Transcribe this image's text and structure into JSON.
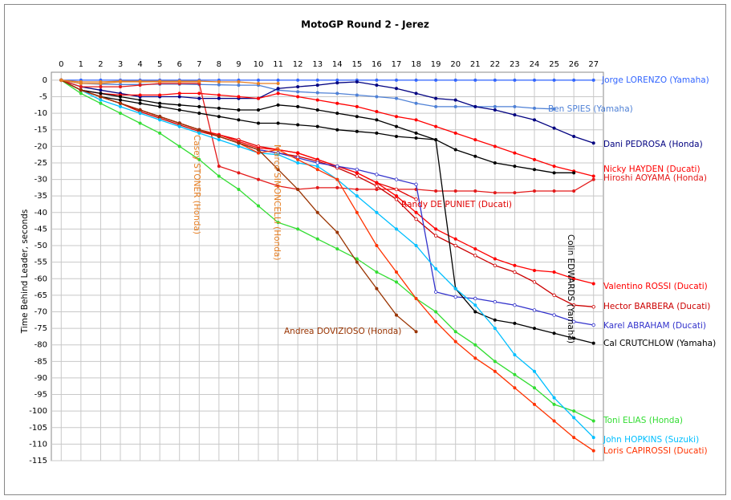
{
  "chart_data": {
    "type": "line",
    "title": "MotoGP Round 2 - Jerez",
    "y_label": "Time Behind Leader, seconds",
    "x": [
      0,
      1,
      2,
      3,
      4,
      5,
      6,
      7,
      8,
      9,
      10,
      11,
      12,
      13,
      14,
      15,
      16,
      17,
      18,
      19,
      20,
      21,
      22,
      23,
      24,
      25,
      26,
      27
    ],
    "xlim": [
      -0.5,
      27.5
    ],
    "xticks": [
      0,
      1,
      2,
      3,
      4,
      5,
      6,
      7,
      8,
      9,
      10,
      11,
      12,
      13,
      14,
      15,
      16,
      17,
      18,
      19,
      20,
      21,
      22,
      23,
      24,
      25,
      26,
      27
    ],
    "ylim": [
      -115,
      2.4
    ],
    "yticks": [
      0,
      -5,
      -10,
      -15,
      -20,
      -25,
      -30,
      -35,
      -40,
      -45,
      -50,
      -55,
      -60,
      -65,
      -70,
      -75,
      -80,
      -85,
      -90,
      -95,
      -100,
      -105,
      -110,
      -115
    ],
    "grid": true,
    "series": [
      {
        "name": "Jorge LORENZO (Yamaha)",
        "color": "#3366ff",
        "marker": "filled",
        "values": [
          0,
          0,
          0,
          0,
          0,
          0,
          0,
          0,
          0,
          0,
          0,
          0,
          0,
          0,
          0,
          0,
          0,
          0,
          0,
          0,
          0,
          0,
          0,
          0,
          0,
          0,
          0,
          0
        ]
      },
      {
        "name": "Ben SPIES (Yamaha)",
        "color": "#4f81d6",
        "marker": "filled",
        "values": [
          0,
          -1,
          -1.2,
          -1.3,
          -1.3,
          -1.2,
          -1.2,
          -1.3,
          -1.4,
          -1.5,
          -1.5,
          -3,
          -3.5,
          -3.8,
          -4,
          -4.5,
          -5,
          -5.5,
          -7,
          -8,
          -8,
          -8,
          -8,
          -8,
          -8.5,
          -8.7,
          null,
          null
        ]
      },
      {
        "name": "Dani PEDROSA (Honda)",
        "color": "#000080",
        "marker": "filled",
        "values": [
          0,
          -2,
          -3,
          -4,
          -5,
          -5,
          -5,
          -5.5,
          -5.5,
          -5.5,
          -5.5,
          -2.5,
          -2,
          -1.5,
          -0.8,
          -0.5,
          -1.5,
          -2.5,
          -4,
          -5.5,
          -6,
          -8,
          -9,
          -10.5,
          -12,
          -14.5,
          -17,
          -19
        ]
      },
      {
        "name": "Nicky HAYDEN (Ducati)",
        "color": "#ff0000",
        "marker": "filled",
        "values": [
          0,
          -3,
          -4,
          -4.5,
          -4.5,
          -4.5,
          -4,
          -4,
          -4.5,
          -5,
          -5.5,
          -4,
          -5,
          -6,
          -7,
          -8,
          -9.5,
          -11,
          -12,
          -14,
          -16,
          -18,
          -20,
          -22,
          -24,
          -26,
          -27.5,
          -29
        ]
      },
      {
        "name": "Hiroshi AOYAMA (Honda)",
        "color": "#e31a1a",
        "marker": "filled",
        "values": [
          0,
          -2,
          -2,
          -2,
          -1.5,
          -1,
          -1,
          -1,
          -26,
          -28,
          -30,
          -32,
          -33,
          -32.5,
          -32.5,
          -33,
          -33,
          -33,
          -33,
          -33.5,
          -33.5,
          -33.5,
          -34,
          -34,
          -33.5,
          -33.5,
          -33.5,
          -30
        ]
      },
      {
        "name": "Colin EDWARDS (Yamaha)",
        "color": "#000000",
        "marker": "filled",
        "values": [
          0,
          -3,
          -4,
          -5,
          -6,
          -7,
          -7.5,
          -8,
          -8.5,
          -9,
          -9,
          -7.5,
          -8,
          -9,
          -10,
          -11,
          -12,
          -14,
          -16,
          -18,
          -21,
          -23,
          -25,
          -26,
          -27,
          -28,
          -28,
          null
        ]
      },
      {
        "name": "Randy DE PUNIET (Ducati)",
        "color": "#e00000",
        "marker": "open",
        "values": [
          0,
          -3,
          -5,
          -7,
          -9,
          -11,
          -13,
          -15,
          -16.5,
          -18,
          -20,
          -21,
          -22,
          -24,
          -26,
          -28,
          -31,
          -33,
          -36,
          null,
          null,
          null,
          null,
          null,
          null,
          null,
          null,
          null
        ]
      },
      {
        "name": "Valentino ROSSI (Ducati)",
        "color": "#ff0000",
        "marker": "filled",
        "values": [
          0,
          -3,
          -5,
          -7,
          -9,
          -11,
          -13,
          -15,
          -16.5,
          -18.5,
          -20.5,
          -21,
          -22,
          -24,
          -26,
          -28,
          -31,
          -35,
          -40,
          -45,
          -48,
          -51,
          -54,
          -56,
          -57.5,
          -58,
          -60,
          -61.5
        ]
      },
      {
        "name": "Hector BARBERA (Ducati)",
        "color": "#cc0000",
        "marker": "open",
        "values": [
          0,
          -3,
          -5,
          -7,
          -9.5,
          -11.5,
          -13.5,
          -15.5,
          -17,
          -19,
          -21,
          -22,
          -23,
          -24.5,
          -26.5,
          -29,
          -32,
          -36,
          -42,
          -47,
          -50,
          -53,
          -56,
          -58,
          -61,
          -65,
          -68,
          -68.5
        ]
      },
      {
        "name": "Karel ABRAHAM (Ducati)",
        "color": "#3333cc",
        "marker": "open",
        "values": [
          0,
          -3,
          -5,
          -7,
          -9,
          -11,
          -13,
          -15,
          -17,
          -19,
          -21,
          -22,
          -23.5,
          -25,
          -26,
          -27,
          -28.5,
          -30,
          -31.5,
          -64,
          -65.5,
          -66,
          -67,
          -68,
          -69.5,
          -71,
          -73,
          -74
        ]
      },
      {
        "name": "Cal CRUTCHLOW (Yamaha)",
        "color": "#000000",
        "marker": "filled",
        "values": [
          0,
          -3,
          -5,
          -6,
          -7,
          -8,
          -9,
          -10,
          -11,
          -12,
          -13,
          -13,
          -13.5,
          -14,
          -15,
          -15.5,
          -16,
          -17,
          -17.5,
          -18,
          -63,
          -70,
          -72.5,
          -73.5,
          -75,
          -76.5,
          -78,
          -79.5
        ]
      },
      {
        "name": "Toni ELIAS (Honda)",
        "color": "#33dd33",
        "marker": "filled",
        "values": [
          0,
          -4,
          -7,
          -10,
          -13,
          -16,
          -20,
          -24,
          -29,
          -33,
          -38,
          -43,
          -45,
          -48,
          -51,
          -54,
          -58,
          -61,
          -66,
          -70,
          -76,
          -80,
          -85,
          -89,
          -93,
          -98,
          -100,
          -103
        ]
      },
      {
        "name": "John HOPKINS (Suzuki)",
        "color": "#00bfff",
        "marker": "filled",
        "values": [
          0,
          -3,
          -6,
          -8,
          -10,
          -12,
          -14,
          -16,
          -18,
          -20,
          -22,
          -22.5,
          -25,
          -26,
          -30,
          -35,
          -40,
          -45,
          -50,
          -57,
          -63,
          -68,
          -75,
          -83,
          -88,
          -96,
          -102,
          -108
        ]
      },
      {
        "name": "Loris CAPIROSSI (Ducati)",
        "color": "#ff3300",
        "marker": "filled",
        "values": [
          0,
          -3,
          -5,
          -7,
          -9,
          -11,
          -13,
          -15,
          -17,
          -19,
          -22,
          -21,
          -24,
          -27,
          -30,
          -40,
          -50,
          -58,
          -66,
          -73,
          -79,
          -84,
          -88,
          -93,
          -98,
          -103,
          -108,
          -112
        ]
      },
      {
        "name": "Andrea DOVIZIOSO (Honda)",
        "color": "#993300",
        "marker": "filled",
        "values": [
          0,
          -3,
          -5,
          -7,
          -9,
          -11,
          -13,
          -15,
          -17,
          -19,
          -21,
          -27,
          -33,
          -40,
          -46,
          -55,
          -63,
          -71,
          -76,
          null,
          null,
          null,
          null,
          null,
          null,
          null,
          null,
          null
        ]
      },
      {
        "name": "Casey STONER (Honda)",
        "color": "#e67e22",
        "marker": "filled",
        "values": [
          0,
          -1,
          -1,
          -0.5,
          -0.5,
          -0.5,
          -0.5,
          -0.5,
          null,
          null,
          null,
          null,
          null,
          null,
          null,
          null,
          null,
          null,
          null,
          null,
          null,
          null,
          null,
          null,
          null,
          null,
          null,
          null
        ]
      },
      {
        "name": "Marco SIMONCELLI (Honda)",
        "color": "#e67e22",
        "marker": "filled",
        "values": [
          0,
          -0.5,
          -0.5,
          -0.3,
          -0.3,
          -0.3,
          -0.3,
          -0.3,
          -0.5,
          -0.5,
          -1,
          -1,
          null,
          null,
          null,
          null,
          null,
          null,
          null,
          null,
          null,
          null,
          null,
          null,
          null,
          null,
          null,
          null
        ]
      }
    ]
  }
}
